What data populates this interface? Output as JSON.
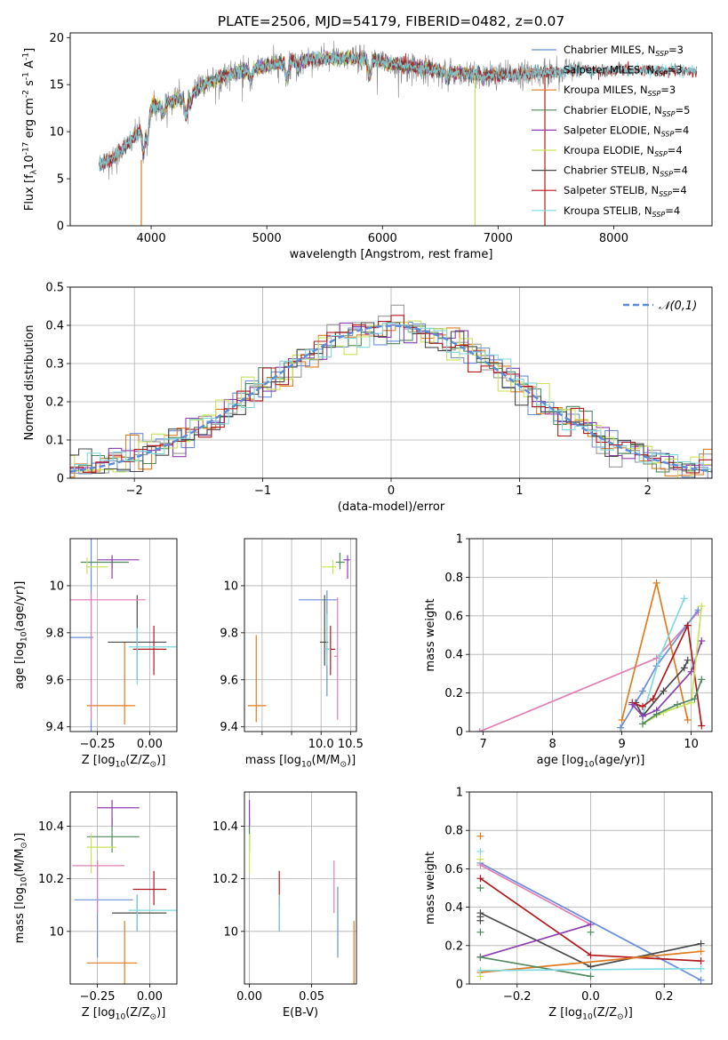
{
  "figure": {
    "title": "PLATE=2506, MJD=54179, FIBERID=0482, z=0.07"
  },
  "colors": {
    "Chabrier MILES": "#6a8fd8",
    "Salpeter MILES": "#9a9a9a",
    "Kroupa MILES": "#e07b20",
    "Chabrier ELODIE": "#4f8a5e",
    "Salpeter ELODIE": "#8e3fb0",
    "Kroupa ELODIE": "#c7e35a",
    "Chabrier STELIB": "#4a4a4a",
    "Salpeter STELIB": "#b0191e",
    "Kroupa STELIB": "#7fd8de",
    "pink": "#e07fb3",
    "normal": "#5b8bd8"
  },
  "chart_data": [
    {
      "id": "spectrum",
      "type": "line",
      "xlabel": "wavelength [Angstrom, rest frame]",
      "ylabel": "Flux [f$_\\lambda$10$^{-17}$ erg cm$^{-2}$ s$^{-1}$ A$^{-1}$]",
      "xlim": [
        3300,
        8850
      ],
      "ylim": [
        0,
        20.5
      ],
      "xticks": [
        4000,
        5000,
        6000,
        7000,
        8000
      ],
      "yticks": [
        0,
        5,
        10,
        15,
        20
      ],
      "legend_position": "top-right",
      "legend": [
        "Chabrier MILES, N_SSP=3",
        "Salpeter MILES, N_SSP=3",
        "Kroupa MILES, N_SSP=3",
        "Chabrier ELODIE, N_SSP=5",
        "Salpeter ELODIE, N_SSP=4",
        "Kroupa ELODIE, N_SSP=4",
        "Chabrier STELIB, N_SSP=4",
        "Salpeter STELIB, N_SSP=4",
        "Kroupa STELIB, N_SSP=4"
      ],
      "legend_series": [
        "Chabrier MILES",
        "Salpeter MILES",
        "Kroupa MILES",
        "Chabrier ELODIE",
        "Salpeter ELODIE",
        "Kroupa ELODIE",
        "Chabrier STELIB",
        "Salpeter STELIB",
        "Kroupa STELIB"
      ],
      "model_continuum": {
        "x": [
          3550,
          3700,
          3900,
          4000,
          4100,
          4300,
          4500,
          4700,
          5000,
          5200,
          5500,
          5800,
          6200,
          6600,
          7000,
          7400,
          7700
        ],
        "y": [
          6.5,
          7.5,
          10.0,
          12.5,
          13.0,
          13.7,
          15.3,
          16.2,
          17.0,
          17.5,
          17.8,
          17.8,
          17.0,
          16.3,
          16.0,
          16.3,
          16.6
        ]
      }
    },
    {
      "id": "residuals",
      "type": "step",
      "xlabel": "(data-model)/error",
      "ylabel": "Normed distribution",
      "xlim": [
        -2.5,
        2.5
      ],
      "ylim": [
        0,
        0.5
      ],
      "xticks": [
        -2,
        -1,
        0,
        1,
        2
      ],
      "yticks": [
        0.0,
        0.1,
        0.2,
        0.3,
        0.4,
        0.5
      ],
      "legend_position": "top-right",
      "legend": [
        "$\\mathcal{N}(0,1)$"
      ],
      "grid": true,
      "bin_width": 0.1
    },
    {
      "id": "age_z",
      "type": "scatter",
      "xlabel": "Z [log$_{10}$(Z/Z$_\\odot$)]",
      "ylabel": "age  [log$_{10}$(age/yr)]",
      "xlim": [
        -0.38,
        0.13
      ],
      "ylim": [
        9.38,
        10.2
      ],
      "xticks": [
        -0.25,
        0.0
      ],
      "xticklabels": [
        "−0.25",
        "0.00"
      ],
      "yticks": [
        9.4,
        9.6,
        9.8,
        10.0
      ],
      "grid": true,
      "points": [
        {
          "s": "Chabrier MILES",
          "x": -0.28,
          "y": 9.78,
          "xlo": -0.38,
          "xhi": -0.27,
          "ylo": 9.26,
          "yhi": 10.3
        },
        {
          "s": "Kroupa MILES",
          "x": -0.12,
          "y": 9.49,
          "xlo": -0.3,
          "xhi": -0.07,
          "ylo": 9.41,
          "yhi": 9.76
        },
        {
          "s": "Chabrier ELODIE",
          "x": -0.18,
          "y": 10.1,
          "xlo": -0.33,
          "xhi": -0.1,
          "ylo": 10.07,
          "yhi": 10.12
        },
        {
          "s": "Salpeter ELODIE",
          "x": -0.18,
          "y": 10.11,
          "xlo": -0.25,
          "xhi": -0.05,
          "ylo": 10.03,
          "yhi": 10.13
        },
        {
          "s": "Kroupa ELODIE",
          "x": -0.3,
          "y": 10.08,
          "xlo": -0.3,
          "xhi": -0.2,
          "ylo": 10.05,
          "yhi": 10.12
        },
        {
          "s": "Chabrier STELIB",
          "x": -0.06,
          "y": 9.76,
          "xlo": -0.2,
          "xhi": 0.08,
          "ylo": 9.6,
          "yhi": 9.96
        },
        {
          "s": "Salpeter STELIB",
          "x": 0.02,
          "y": 9.73,
          "xlo": -0.08,
          "xhi": 0.08,
          "ylo": 9.62,
          "yhi": 9.83
        },
        {
          "s": "Kroupa STELIB",
          "x": -0.06,
          "y": 9.74,
          "xlo": -0.1,
          "xhi": 0.13,
          "ylo": 9.58,
          "yhi": 9.82
        },
        {
          "s": "pink",
          "x": -0.28,
          "y": 9.94,
          "xlo": -0.38,
          "xhi": -0.02,
          "ylo": 9.43,
          "yhi": 9.97
        }
      ]
    },
    {
      "id": "age_mass",
      "type": "scatter",
      "xlabel": "mass [log$_{10}$(M/M$_\\odot$)]",
      "xlim": [
        8.7,
        10.6
      ],
      "ylim": [
        9.38,
        10.2
      ],
      "xticks": [
        9.0,
        9.5,
        10.0,
        10.5
      ],
      "xticklabels": [
        "",
        "",
        "10.0",
        "10.5"
      ],
      "yticks": [
        9.4,
        9.6,
        9.8,
        10.0
      ],
      "grid": true,
      "points": [
        {
          "s": "Chabrier MILES",
          "x": 10.1,
          "y": 9.94,
          "xlo": 9.62,
          "xhi": 10.28,
          "ylo": 9.53,
          "yhi": 9.98
        },
        {
          "s": "Kroupa MILES",
          "x": 8.9,
          "y": 9.49,
          "xlo": 8.76,
          "xhi": 9.07,
          "ylo": 9.42,
          "yhi": 9.79
        },
        {
          "s": "Chabrier ELODIE",
          "x": 10.32,
          "y": 10.1,
          "xlo": 10.25,
          "xhi": 10.4,
          "ylo": 10.07,
          "yhi": 10.14
        },
        {
          "s": "Salpeter ELODIE",
          "x": 10.45,
          "y": 10.11,
          "xlo": 10.38,
          "xhi": 10.49,
          "ylo": 10.03,
          "yhi": 10.13
        },
        {
          "s": "Kroupa ELODIE",
          "x": 10.2,
          "y": 10.08,
          "xlo": 10.02,
          "xhi": 10.26,
          "ylo": 10.05,
          "yhi": 10.11
        },
        {
          "s": "Chabrier STELIB",
          "x": 10.06,
          "y": 9.76,
          "xlo": 9.98,
          "xhi": 10.12,
          "ylo": 9.66,
          "yhi": 9.96
        },
        {
          "s": "Salpeter STELIB",
          "x": 10.16,
          "y": 9.73,
          "xlo": 10.05,
          "xhi": 10.24,
          "ylo": 9.62,
          "yhi": 9.83
        },
        {
          "s": "Kroupa STELIB",
          "x": 10.1,
          "y": 9.73,
          "xlo": 10.06,
          "xhi": 10.16,
          "ylo": 9.66,
          "yhi": 9.88
        },
        {
          "s": "pink",
          "x": 10.28,
          "y": 9.7,
          "xlo": 10.22,
          "xhi": 10.28,
          "ylo": 9.43,
          "yhi": 9.95
        }
      ]
    },
    {
      "id": "weight_age",
      "type": "line",
      "xlabel": "age  [log$_{10}$(age/yr)]",
      "ylabel": "mass weight",
      "xlim": [
        6.8,
        10.3
      ],
      "ylim": [
        0.0,
        1.0
      ],
      "xticks": [
        7,
        8,
        9,
        10
      ],
      "yticks": [
        0.0,
        0.2,
        0.4,
        0.6,
        0.8,
        1.0
      ],
      "grid": true,
      "series": [
        {
          "s": "pink",
          "x": [
            6.95,
            9.5,
            10.1
          ],
          "y": [
            0.0,
            0.38,
            0.62
          ]
        },
        {
          "s": "Chabrier MILES",
          "x": [
            8.98,
            9.3,
            9.5,
            10.1
          ],
          "y": [
            0.02,
            0.21,
            0.34,
            0.63
          ]
        },
        {
          "s": "Kroupa MILES",
          "x": [
            9.0,
            9.5,
            9.95
          ],
          "y": [
            0.06,
            0.77,
            0.06
          ]
        },
        {
          "s": "Kroupa STELIB",
          "x": [
            9.3,
            9.55,
            9.9
          ],
          "y": [
            0.08,
            0.39,
            0.69
          ]
        },
        {
          "s": "Chabrier STELIB",
          "x": [
            9.2,
            9.3,
            9.6,
            9.9,
            9.95
          ],
          "y": [
            0.15,
            0.08,
            0.21,
            0.33,
            0.37
          ]
        },
        {
          "s": "Salpeter STELIB",
          "x": [
            9.15,
            9.3,
            9.45,
            9.95,
            10.15
          ],
          "y": [
            0.15,
            0.13,
            0.17,
            0.55,
            0.03
          ]
        },
        {
          "s": "Salpeter ELODIE",
          "x": [
            9.15,
            9.3,
            9.5,
            10.0,
            10.15
          ],
          "y": [
            0.14,
            0.08,
            0.11,
            0.31,
            0.47
          ]
        },
        {
          "s": "Kroupa ELODIE",
          "x": [
            9.3,
            9.6,
            10.0,
            10.15
          ],
          "y": [
            0.04,
            0.1,
            0.15,
            0.65
          ]
        },
        {
          "s": "Chabrier ELODIE",
          "x": [
            9.3,
            9.5,
            9.8,
            10.05,
            10.15
          ],
          "y": [
            0.04,
            0.09,
            0.14,
            0.17,
            0.27
          ]
        }
      ]
    },
    {
      "id": "mass_z",
      "type": "scatter",
      "xlabel": "Z [log$_{10}$(Z/Z$_\\odot$)]",
      "ylabel": "mass [log$_{10}$(M/M$_\\odot$)]",
      "xlim": [
        -0.38,
        0.13
      ],
      "ylim": [
        9.8,
        10.53
      ],
      "xticks": [
        -0.25,
        0.0
      ],
      "xticklabels": [
        "−0.25",
        "0.00"
      ],
      "yticks": [
        10.0,
        10.2,
        10.4
      ],
      "grid": true,
      "points": [
        {
          "s": "Chabrier MILES",
          "x": -0.25,
          "y": 10.12,
          "xlo": -0.36,
          "xhi": -0.08,
          "ylo": 9.9,
          "yhi": 10.27
        },
        {
          "s": "Kroupa MILES",
          "x": -0.12,
          "y": 9.88,
          "xlo": -0.3,
          "xhi": -0.06,
          "ylo": 9.8,
          "yhi": 10.04
        },
        {
          "s": "Chabrier ELODIE",
          "x": -0.18,
          "y": 10.36,
          "xlo": -0.3,
          "xhi": -0.05,
          "ylo": 10.3,
          "yhi": 10.43
        },
        {
          "s": "Salpeter ELODIE",
          "x": -0.18,
          "y": 10.47,
          "xlo": -0.25,
          "xhi": -0.05,
          "ylo": 10.4,
          "yhi": 10.5
        },
        {
          "s": "Kroupa ELODIE",
          "x": -0.28,
          "y": 10.32,
          "xlo": -0.3,
          "xhi": -0.16,
          "ylo": 10.22,
          "yhi": 10.37
        },
        {
          "s": "Chabrier STELIB",
          "x": -0.06,
          "y": 10.07,
          "xlo": -0.18,
          "xhi": 0.08,
          "ylo": 10.0,
          "yhi": 10.14
        },
        {
          "s": "Salpeter STELIB",
          "x": 0.02,
          "y": 10.16,
          "xlo": -0.08,
          "xhi": 0.08,
          "ylo": 10.1,
          "yhi": 10.23
        },
        {
          "s": "Kroupa STELIB",
          "x": -0.06,
          "y": 10.08,
          "xlo": -0.1,
          "xhi": 0.13,
          "ylo": 10.0,
          "yhi": 10.14
        },
        {
          "s": "pink",
          "x": -0.25,
          "y": 10.25,
          "xlo": -0.37,
          "xhi": -0.12,
          "ylo": 10.07,
          "yhi": 10.27
        }
      ]
    },
    {
      "id": "mass_ebv",
      "type": "scatter",
      "xlabel": "E(B-V)",
      "xlim": [
        -0.004,
        0.086
      ],
      "ylim": [
        9.8,
        10.53
      ],
      "xticks": [
        0.0,
        0.05
      ],
      "xticklabels": [
        "0.00",
        "0.05"
      ],
      "yticks": [
        10.0,
        10.2,
        10.4
      ],
      "grid": true,
      "points": [
        {
          "s": "Chabrier MILES",
          "x": 0.071,
          "y": 10.05,
          "ylo": 9.9,
          "yhi": 10.17
        },
        {
          "s": "Kroupa MILES",
          "x": 0.084,
          "y": 9.9,
          "ylo": 9.8,
          "yhi": 10.04
        },
        {
          "s": "Chabrier ELODIE",
          "x": 0.0,
          "y": 10.36,
          "ylo": 10.3,
          "yhi": 10.43
        },
        {
          "s": "Salpeter ELODIE",
          "x": 0.0,
          "y": 10.45,
          "ylo": 10.4,
          "yhi": 10.5
        },
        {
          "s": "Kroupa ELODIE",
          "x": 0.0,
          "y": 10.3,
          "ylo": 10.22,
          "yhi": 10.37
        },
        {
          "s": "Chabrier STELIB",
          "x": 0.024,
          "y": 10.07,
          "ylo": 10.0,
          "yhi": 10.14
        },
        {
          "s": "Salpeter STELIB",
          "x": 0.024,
          "y": 10.16,
          "ylo": 10.1,
          "yhi": 10.23
        },
        {
          "s": "Kroupa STELIB",
          "x": 0.024,
          "y": 10.08,
          "ylo": 10.0,
          "yhi": 10.14
        },
        {
          "s": "pink",
          "x": 0.068,
          "y": 10.17,
          "ylo": 10.07,
          "yhi": 10.27
        }
      ]
    },
    {
      "id": "weight_z",
      "type": "line",
      "xlabel": "Z [log$_{10}$(Z/Z$_\\odot$)]",
      "ylabel": "mass weight",
      "xlim": [
        -0.33,
        0.33
      ],
      "ylim": [
        0.0,
        1.0
      ],
      "xticks": [
        -0.2,
        0.0,
        0.2
      ],
      "xticklabels": [
        "−0.2",
        "0.0",
        "0.2"
      ],
      "yticks": [
        0.0,
        0.2,
        0.4,
        0.6,
        0.8,
        1.0
      ],
      "grid": true,
      "series": [
        {
          "s": "Chabrier MILES",
          "x": [
            -0.3,
            0.3
          ],
          "y": [
            0.63,
            0.02
          ]
        },
        {
          "s": "pink",
          "x": [
            -0.3,
            0.0
          ],
          "y": [
            0.62,
            0.31
          ]
        },
        {
          "s": "Salpeter STELIB",
          "x": [
            -0.3,
            0.0,
            0.3
          ],
          "y": [
            0.55,
            0.15,
            0.12
          ]
        },
        {
          "s": "Chabrier STELIB",
          "x": [
            -0.3,
            0.0,
            0.3
          ],
          "y": [
            0.37,
            0.09,
            0.21
          ]
        },
        {
          "s": "Salpeter ELODIE",
          "x": [
            -0.3,
            0.0
          ],
          "y": [
            0.14,
            0.31
          ]
        },
        {
          "s": "Kroupa MILES",
          "x": [
            -0.3,
            0.3
          ],
          "y": [
            0.06,
            0.17
          ]
        },
        {
          "s": "Chabrier ELODIE",
          "x": [
            -0.3,
            0.0
          ],
          "y": [
            0.14,
            0.04
          ]
        },
        {
          "s": "Kroupa STELIB",
          "x": [
            -0.3,
            0.3
          ],
          "y": [
            0.07,
            0.08
          ]
        }
      ],
      "markers": [
        {
          "s": "Kroupa MILES",
          "x": -0.3,
          "ys": [
            0.77
          ]
        },
        {
          "s": "Kroupa STELIB",
          "x": -0.3,
          "ys": [
            0.69
          ]
        },
        {
          "s": "Chabrier ELODIE",
          "x": -0.3,
          "ys": [
            0.5,
            0.27
          ]
        },
        {
          "s": "Chabrier STELIB",
          "x": -0.3,
          "ys": [
            0.35,
            0.33
          ]
        },
        {
          "s": "Kroupa ELODIE",
          "x": -0.3,
          "ys": [
            0.04,
            0.65
          ]
        },
        {
          "s": "Chabrier ELODIE",
          "x": 0.0,
          "ys": [
            0.27
          ]
        }
      ]
    }
  ]
}
